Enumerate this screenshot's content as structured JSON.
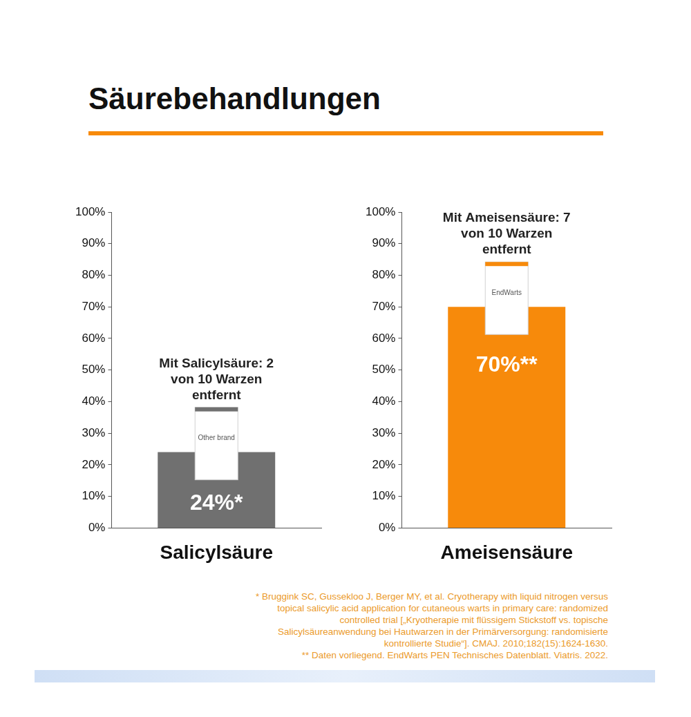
{
  "title": "Säurebehandlungen",
  "chart_data": [
    {
      "type": "bar",
      "categories": [
        "Salicylsäure"
      ],
      "values": [
        24
      ],
      "value_labels": [
        "24%*"
      ],
      "color": "#707070",
      "data_labels": true,
      "grid": false,
      "annotation": "Mit Salicylsäure: 2 von 10 Warzen entfernt",
      "product_label": "Other brand",
      "ylim": [
        0,
        100
      ],
      "yticks": [
        {
          "value": 0,
          "label": "0%"
        },
        {
          "value": 10,
          "label": "10%"
        },
        {
          "value": 20,
          "label": "20%"
        },
        {
          "value": 30,
          "label": "30%"
        },
        {
          "value": 40,
          "label": "40%"
        },
        {
          "value": 50,
          "label": "50%"
        },
        {
          "value": 60,
          "label": "60%"
        },
        {
          "value": 70,
          "label": "70%"
        },
        {
          "value": 80,
          "label": "80%"
        },
        {
          "value": 90,
          "label": "90%"
        },
        {
          "value": 100,
          "label": "100%"
        }
      ]
    },
    {
      "type": "bar",
      "categories": [
        "Ameisensäure"
      ],
      "values": [
        70
      ],
      "value_labels": [
        "70%**"
      ],
      "color": "#f78a0b",
      "data_labels": true,
      "grid": false,
      "annotation": "Mit Ameisensäure: 7 von 10 Warzen entfernt",
      "product_label": "EndWarts",
      "ylim": [
        0,
        100
      ],
      "yticks": [
        {
          "value": 0,
          "label": "0%"
        },
        {
          "value": 10,
          "label": "10%"
        },
        {
          "value": 20,
          "label": "20%"
        },
        {
          "value": 30,
          "label": "30%"
        },
        {
          "value": 40,
          "label": "40%"
        },
        {
          "value": 50,
          "label": "50%"
        },
        {
          "value": 60,
          "label": "60%"
        },
        {
          "value": 70,
          "label": "70%"
        },
        {
          "value": 80,
          "label": "80%"
        },
        {
          "value": 90,
          "label": "90%"
        },
        {
          "value": 100,
          "label": "100%"
        }
      ]
    }
  ],
  "footnotes": [
    "* Bruggink SC, Gussekloo J, Berger MY, et al. Cryotherapy with liquid nitrogen versus topical salicylic acid application for cutaneous warts in primary care: randomized controlled trial [„Kryotherapie mit flüssigem Stickstoff vs. topische Salicylsäureanwendung bei Hautwarzen in der Primärversorgung: randomisierte kontrollierte Studie“]. CMAJ. 2010;182(15):1624-1630.",
    "** Daten vorliegend. EndWarts PEN Technisches Datenblatt. Viatris. 2022."
  ]
}
